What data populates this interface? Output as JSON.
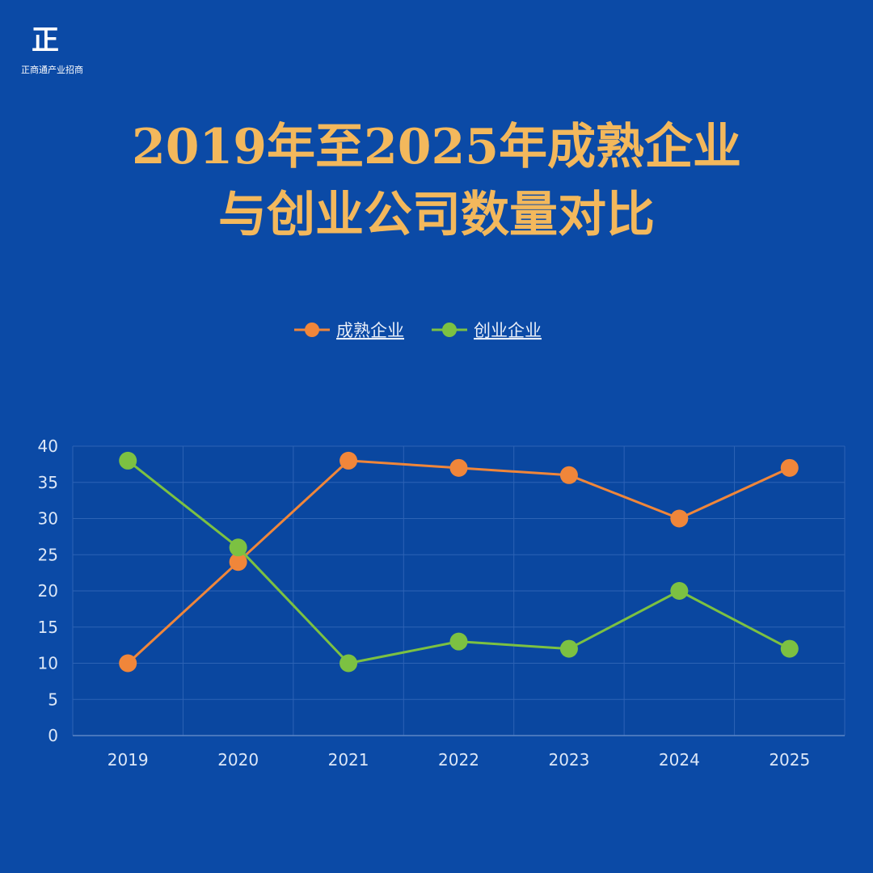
{
  "logo": {
    "mark": "正",
    "text": "正商通产业招商"
  },
  "title": {
    "line1": "2019年至2025年成熟企业",
    "line2": "与创业公司数量对比"
  },
  "chart_data": {
    "type": "line",
    "x": [
      "2019",
      "2020",
      "2021",
      "2022",
      "2023",
      "2024",
      "2025"
    ],
    "series": [
      {
        "name": "成熟企业",
        "color": "#f0863a",
        "values": [
          10,
          24,
          38,
          37,
          36,
          30,
          37
        ]
      },
      {
        "name": "创业企业",
        "color": "#7cc142",
        "values": [
          38,
          26,
          10,
          13,
          12,
          20,
          12
        ]
      }
    ],
    "ylim": [
      0,
      40
    ],
    "yticks": [
      0,
      5,
      10,
      15,
      20,
      25,
      30,
      35,
      40
    ],
    "grid": true,
    "legend": "top-center"
  }
}
